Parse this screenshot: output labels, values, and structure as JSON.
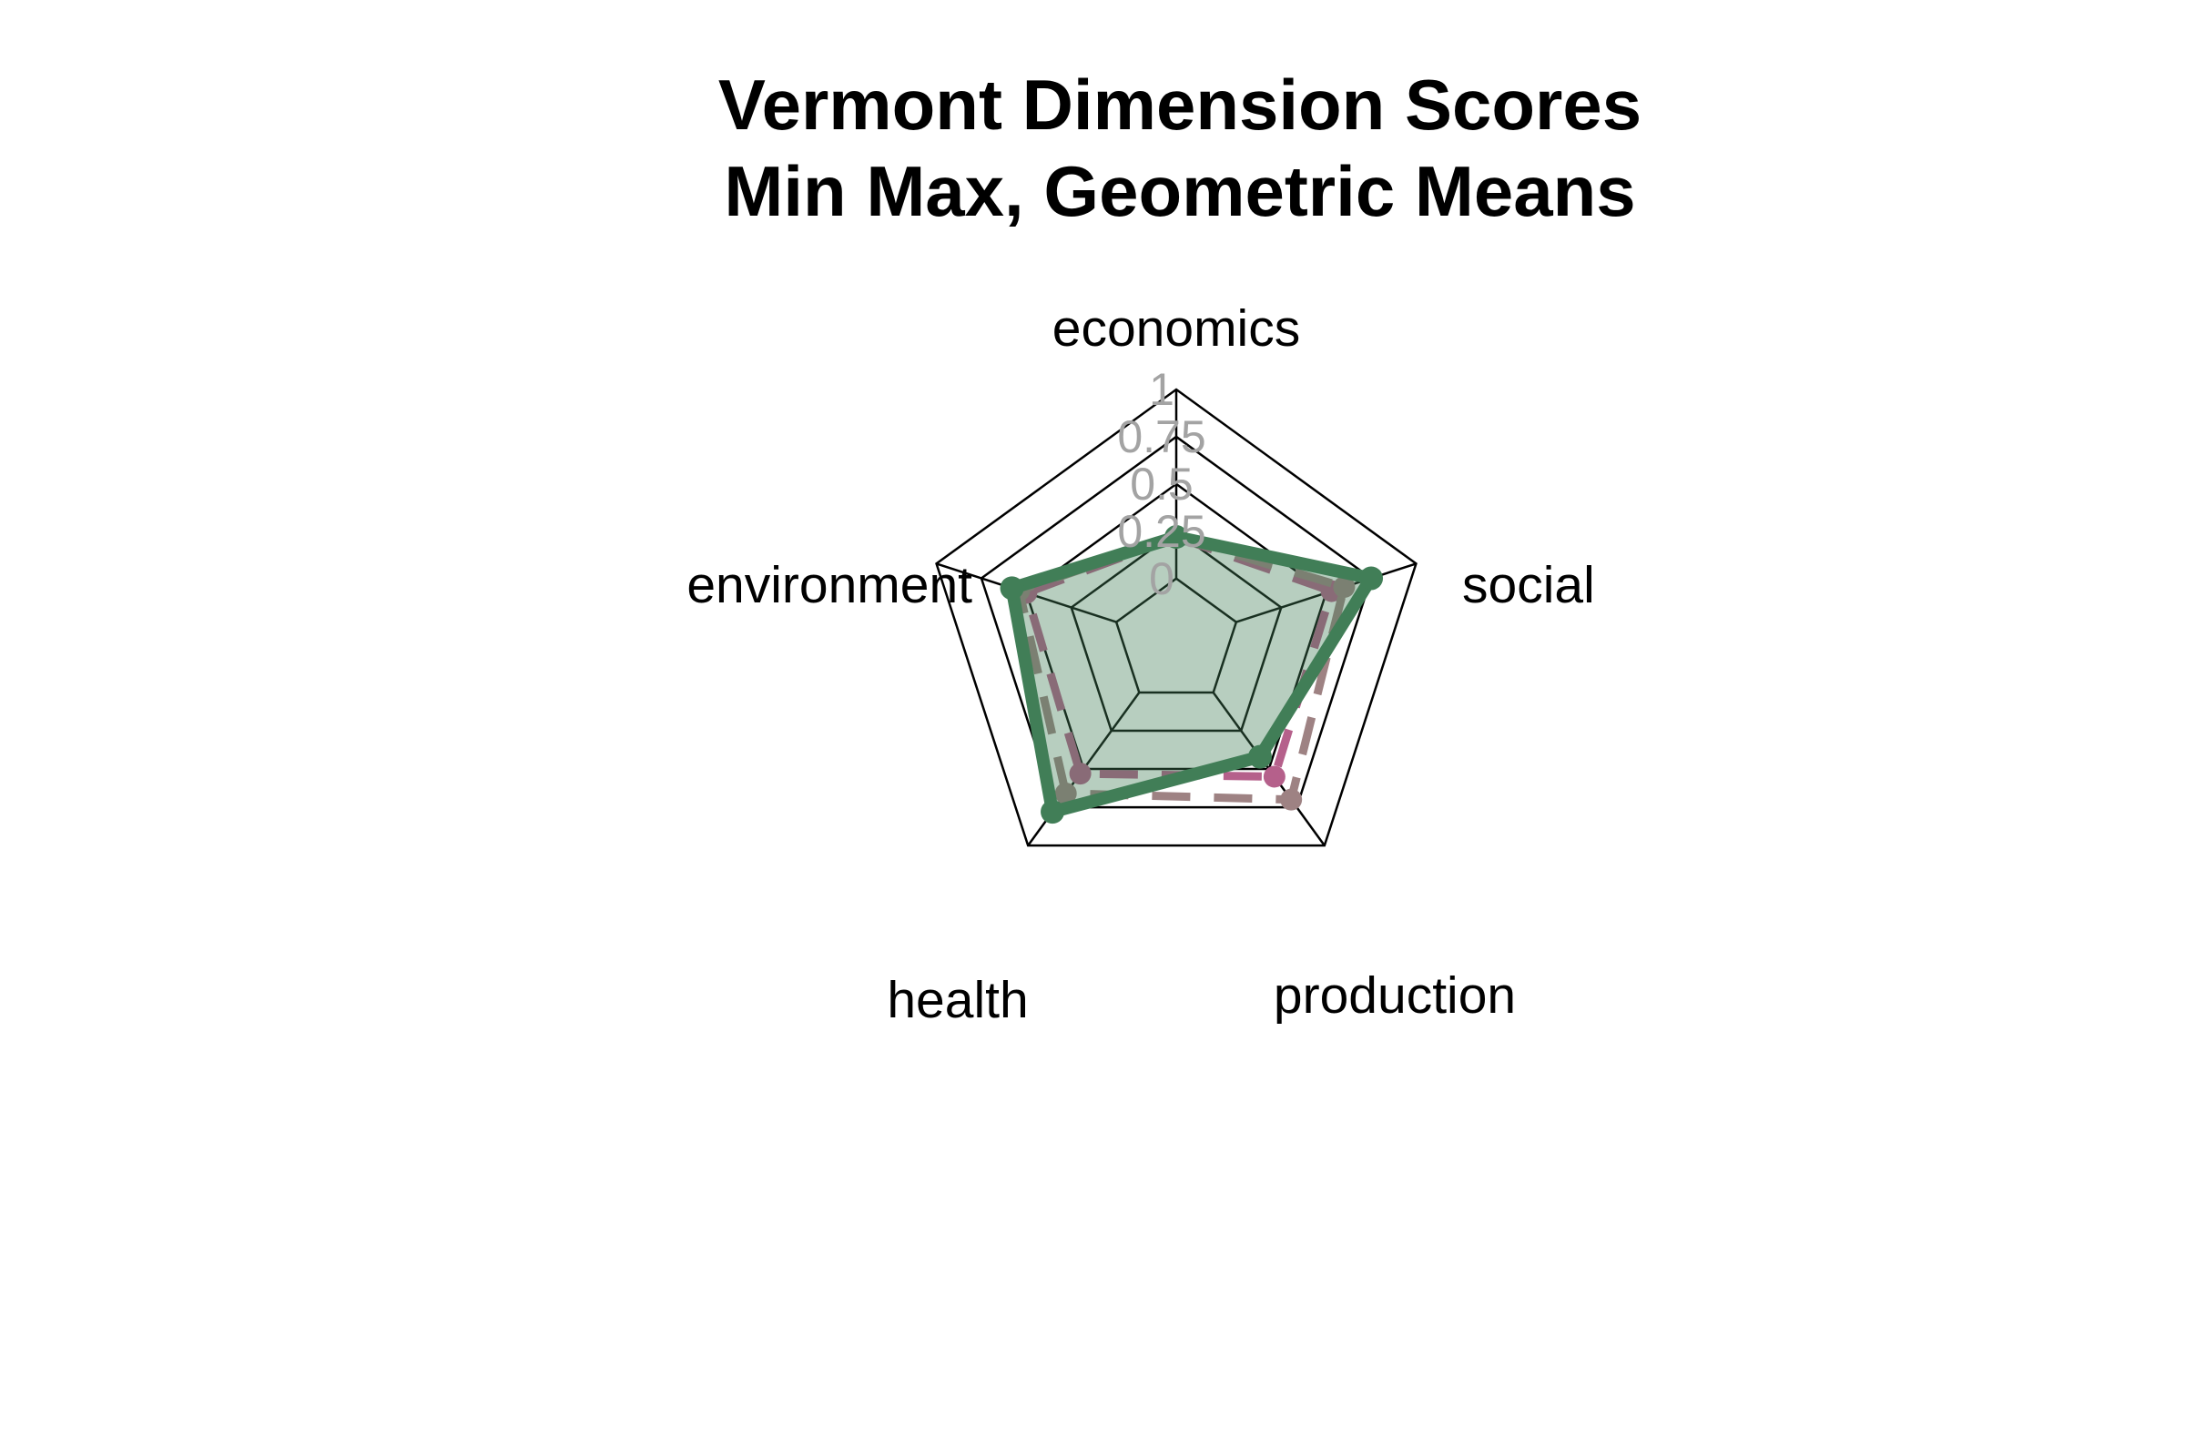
{
  "chart_data": {
    "type": "radar",
    "title": [
      "Vermont Dimension Scores",
      "Min Max, Geometric Means"
    ],
    "axes": [
      "economics",
      "social",
      "production",
      "health",
      "environment"
    ],
    "ring_labels": [
      "1",
      "0.75",
      "0.5",
      "0.25",
      "0"
    ],
    "range": [
      0,
      1
    ],
    "series": [
      {
        "values": [
          0.22,
          0.75,
          0.42,
          0.78,
          0.58
        ],
        "color": "#417e57",
        "fill": "#417e57",
        "fill_opacity": 0.38,
        "line_style": "solid"
      },
      {
        "values": [
          0.22,
          0.6,
          0.7,
          0.66,
          0.54
        ],
        "color": "#9e8283",
        "line_style": "dashed"
      },
      {
        "values": [
          0.22,
          0.53,
          0.55,
          0.53,
          0.5
        ],
        "color": "#b5608b",
        "line_style": "dashed"
      }
    ]
  }
}
